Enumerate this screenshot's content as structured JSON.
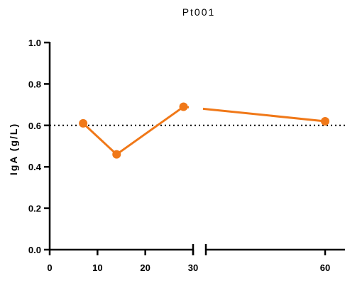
{
  "chart_data": {
    "type": "line",
    "title": "Pt001",
    "xlabel": "",
    "ylabel": "IgA (g/L)",
    "x_segments": [
      {
        "range": [
          0,
          30
        ],
        "ticks": [
          0,
          10,
          20,
          30
        ]
      },
      {
        "range": [
          30,
          65
        ],
        "ticks": [
          60
        ]
      }
    ],
    "ylim": [
      0,
      1.0
    ],
    "yticks": [
      0.0,
      0.2,
      0.4,
      0.6,
      0.8,
      1.0
    ],
    "ytick_labels": [
      "0.0",
      "0.2",
      "0.4",
      "0.6",
      "0.8",
      "1.0"
    ],
    "series": [
      {
        "color": "#f07818",
        "points": [
          {
            "x": 7,
            "y": 0.61
          },
          {
            "x": 14,
            "y": 0.46
          },
          {
            "x": 28,
            "y": 0.69
          },
          {
            "x": 60,
            "y": 0.62
          }
        ]
      }
    ],
    "reference_line": {
      "y": 0.6,
      "style": "dotted",
      "color": "#000000"
    },
    "axis_break": "between 30 and 60",
    "grid": false,
    "legend": "none"
  }
}
